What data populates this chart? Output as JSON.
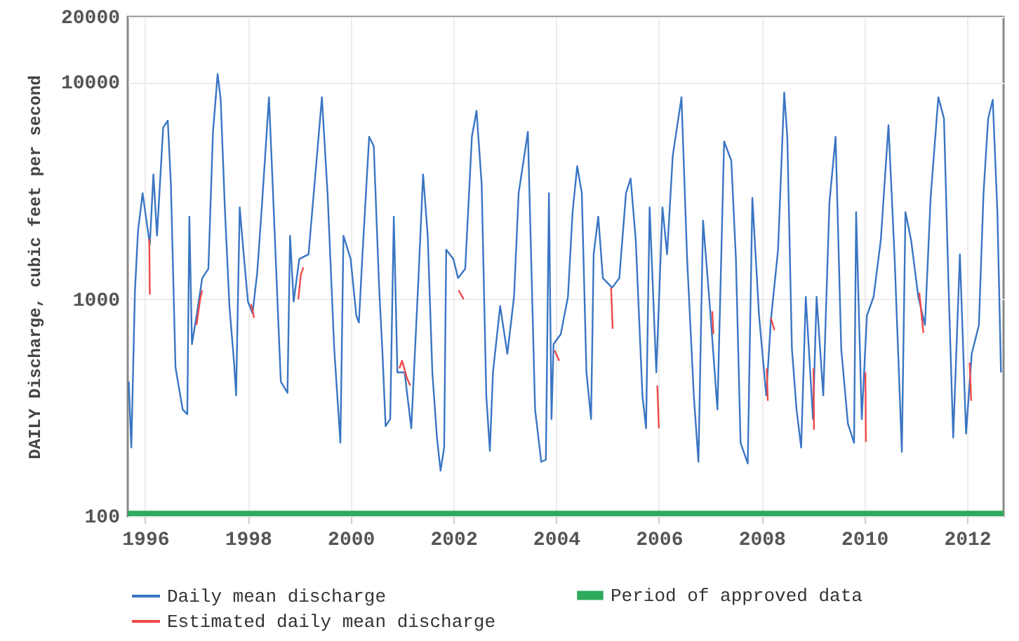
{
  "chart_data": {
    "type": "line",
    "ylabel": "DAILY Discharge, cubic feet per second",
    "log": "y",
    "grid": true,
    "legend": "bottom",
    "line_style": "solid",
    "xlim": [
      1995.66,
      2012.71
    ],
    "xticks": [
      1996,
      1998,
      2000,
      2002,
      2004,
      2006,
      2008,
      2010,
      2012
    ],
    "ylim": [
      100,
      20000
    ],
    "yticks": [
      100,
      1000,
      10000,
      20000
    ],
    "bands": [
      {
        "axis": "y",
        "from": 100,
        "to": 106,
        "label": "Period of approved data",
        "color": "#2eaa5c"
      }
    ],
    "series": [
      {
        "name": "Daily mean discharge",
        "color": "#3a75c4",
        "x": [
          1995.68,
          1995.73,
          1995.8,
          1995.86,
          1995.95,
          1996.09,
          1996.16,
          1996.23,
          1996.35,
          1996.44,
          1996.5,
          1996.59,
          1996.73,
          1996.82,
          1996.86,
          1996.91,
          1997.0,
          1997.11,
          1997.23,
          1997.32,
          1997.41,
          1997.47,
          1997.55,
          1997.64,
          1997.73,
          1997.77,
          1997.84,
          1997.91,
          1998.0,
          1998.09,
          1998.18,
          1998.27,
          1998.41,
          1998.5,
          1998.64,
          1998.77,
          1998.82,
          1998.89,
          1999.0,
          1999.18,
          1999.25,
          1999.36,
          1999.44,
          1999.55,
          1999.68,
          1999.8,
          1999.86,
          2000.0,
          2000.11,
          2000.16,
          2000.23,
          2000.36,
          2000.45,
          2000.55,
          2000.62,
          2000.68,
          2000.77,
          2000.84,
          2000.91,
          2001.05,
          2001.18,
          2001.32,
          2001.41,
          2001.5,
          2001.59,
          2001.68,
          2001.75,
          2001.82,
          2001.86,
          2002.0,
          2002.09,
          2002.23,
          2002.36,
          2002.45,
          2002.55,
          2002.64,
          2002.71,
          2002.77,
          2002.91,
          2003.05,
          2003.18,
          2003.27,
          2003.45,
          2003.5,
          2003.59,
          2003.71,
          2003.8,
          2003.86,
          2003.91,
          2003.95,
          2004.09,
          2004.23,
          2004.32,
          2004.41,
          2004.5,
          2004.59,
          2004.68,
          2004.73,
          2004.82,
          2004.91,
          2005.09,
          2005.23,
          2005.36,
          2005.45,
          2005.55,
          2005.68,
          2005.75,
          2005.82,
          2005.95,
          2006.07,
          2006.16,
          2006.27,
          2006.44,
          2006.55,
          2006.68,
          2006.77,
          2006.86,
          2007.0,
          2007.14,
          2007.27,
          2007.41,
          2007.5,
          2007.59,
          2007.73,
          2007.82,
          2007.95,
          2008.09,
          2008.18,
          2008.32,
          2008.44,
          2008.5,
          2008.59,
          2008.68,
          2008.77,
          2008.86,
          2009.0,
          2009.07,
          2009.2,
          2009.32,
          2009.44,
          2009.55,
          2009.68,
          2009.8,
          2009.84,
          2009.95,
          2010.05,
          2010.18,
          2010.32,
          2010.47,
          2010.59,
          2010.73,
          2010.8,
          2010.91,
          2011.05,
          2011.18,
          2011.29,
          2011.44,
          2011.55,
          2011.64,
          2011.73,
          2011.86,
          2011.98,
          2012.09,
          2012.23,
          2012.32,
          2012.41,
          2012.5,
          2012.59,
          2012.66
        ],
        "values": [
          417,
          207,
          1080,
          2060,
          3080,
          1780,
          3760,
          1960,
          6180,
          6650,
          3400,
          485,
          310,
          295,
          2400,
          620,
          840,
          1250,
          1380,
          5900,
          10900,
          8300,
          2650,
          930,
          510,
          360,
          2650,
          1690,
          975,
          860,
          1320,
          2650,
          8520,
          2650,
          417,
          370,
          1960,
          975,
          1530,
          1610,
          2520,
          5070,
          8520,
          3080,
          590,
          218,
          1960,
          1530,
          840,
          780,
          1610,
          5600,
          5070,
          1190,
          560,
          260,
          280,
          2400,
          460,
          460,
          254,
          1250,
          3760,
          1960,
          460,
          230,
          162,
          207,
          1690,
          1530,
          1250,
          1380,
          5600,
          7380,
          3400,
          360,
          200,
          460,
          930,
          560,
          1025,
          3080,
          5900,
          2060,
          310,
          178,
          182,
          3080,
          280,
          620,
          690,
          1025,
          2520,
          4100,
          3080,
          460,
          280,
          1610,
          2400,
          1250,
          1130,
          1250,
          3080,
          3600,
          1870,
          360,
          254,
          2650,
          460,
          2650,
          1610,
          4580,
          8520,
          1530,
          360,
          178,
          2300,
          880,
          310,
          5330,
          4350,
          1530,
          218,
          175,
          2930,
          840,
          360,
          800,
          1690,
          8960,
          5600,
          590,
          310,
          207,
          1025,
          280,
          1025,
          360,
          2780,
          5600,
          590,
          267,
          218,
          2520,
          280,
          840,
          1025,
          1870,
          6340,
          1530,
          198,
          2520,
          1870,
          1025,
          760,
          2930,
          8520,
          6800,
          1130,
          230,
          1610,
          240,
          560,
          760,
          3080,
          6800,
          8300,
          2520,
          460
        ]
      },
      {
        "name": "Estimated daily mean discharge",
        "color": "#f04848",
        "x": [
          1996.08,
          1996.09,
          null,
          1997.0,
          1997.07,
          1997.11,
          null,
          1998.06,
          1998.12,
          null,
          1998.98,
          1999.03,
          1999.08,
          null,
          2000.95,
          2001.0,
          2001.1,
          2001.16,
          null,
          2002.1,
          2002.2,
          null,
          2003.97,
          2004.06,
          null,
          2005.07,
          2005.1,
          null,
          2005.97,
          2006.0,
          null,
          2007.04,
          2007.06,
          null,
          2008.1,
          2008.12,
          null,
          2008.18,
          2008.25,
          null,
          2009.01,
          2009.02,
          null,
          2010.02,
          2010.03,
          null,
          2011.07,
          2011.15,
          null,
          2012.05,
          2012.08
        ],
        "values": [
          1900,
          1050,
          null,
          760,
          1000,
          1100,
          null,
          950,
          820,
          null,
          1000,
          1300,
          1400,
          null,
          480,
          520,
          430,
          400,
          null,
          1100,
          1000,
          null,
          580,
          520,
          null,
          1130,
          730,
          null,
          400,
          254,
          null,
          880,
          690,
          null,
          480,
          340,
          null,
          820,
          720,
          null,
          480,
          250,
          null,
          460,
          220,
          null,
          1070,
          700,
          null,
          510,
          340
        ]
      }
    ]
  }
}
